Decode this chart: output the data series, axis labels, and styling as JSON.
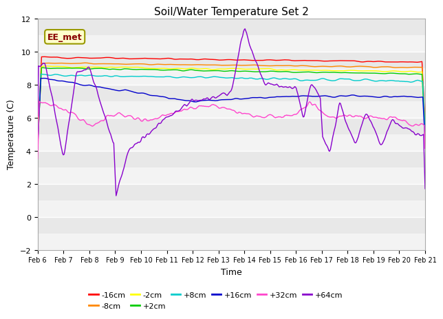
{
  "title": "Soil/Water Temperature Set 2",
  "xlabel": "Time",
  "ylabel": "Temperature (C)",
  "ylim": [
    -2,
    12
  ],
  "yticks": [
    -2,
    0,
    2,
    4,
    6,
    8,
    10,
    12
  ],
  "date_labels": [
    "Feb 6",
    "Feb 7",
    "Feb 8",
    "Feb 9",
    "Feb 10",
    "Feb 11",
    "Feb 12",
    "Feb 13",
    "Feb 14",
    "Feb 15",
    "Feb 16",
    "Feb 17",
    "Feb 18",
    "Feb 19",
    "Feb 20",
    "Feb 21"
  ],
  "annotation_text": "EE_met",
  "annotation_box_color": "#ffffcc",
  "annotation_box_edgecolor": "#999900",
  "annotation_text_color": "#880000",
  "background_color": "#ffffff",
  "plot_bg_color": "#e8e8e8",
  "grid_color": "#ffffff",
  "n_points": 500,
  "series_colors": {
    "-16cm": "#ff0000",
    "-8cm": "#ff8800",
    "-2cm": "#ffff00",
    "+2cm": "#00cc00",
    "+8cm": "#00cccc",
    "+16cm": "#0000cc",
    "+32cm": "#ff44cc",
    "+64cm": "#8800cc"
  }
}
